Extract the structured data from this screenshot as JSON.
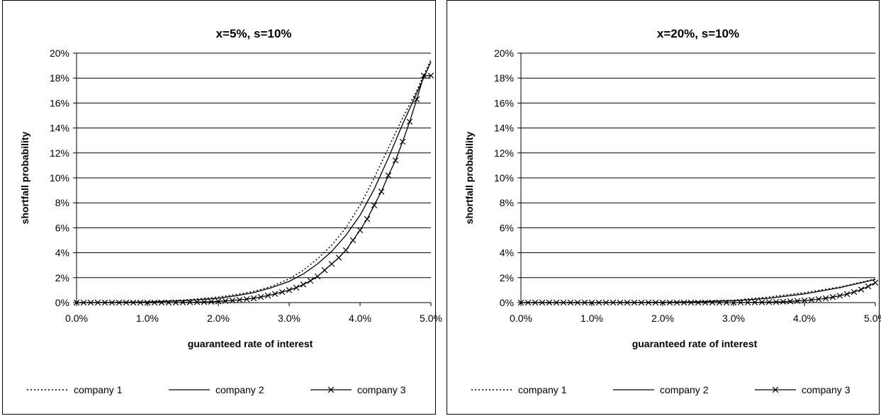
{
  "chart_data": [
    {
      "type": "line",
      "title": "x=5%, s=10%",
      "xlabel": "guaranteed rate of interest",
      "ylabel": "shortfall probability",
      "xlim": [
        0.0,
        5.0
      ],
      "ylim": [
        0,
        20
      ],
      "x_tick_labels": [
        "0.0%",
        "1.0%",
        "2.0%",
        "3.0%",
        "4.0%",
        "5.0%"
      ],
      "y_tick_labels": [
        "0%",
        "2%",
        "4%",
        "6%",
        "8%",
        "10%",
        "12%",
        "14%",
        "16%",
        "18%",
        "20%"
      ],
      "grid": "horizontal",
      "legend_position": "bottom",
      "series": [
        {
          "name": "company 1",
          "style": "dotted",
          "x": [
            0,
            0.5,
            1.0,
            1.5,
            2.0,
            2.25,
            2.5,
            2.75,
            3.0,
            3.2,
            3.4,
            3.6,
            3.8,
            4.0,
            4.2,
            4.4,
            4.6,
            4.8,
            5.0
          ],
          "y": [
            0,
            0.02,
            0.06,
            0.2,
            0.45,
            0.65,
            0.9,
            1.3,
            1.9,
            2.6,
            3.5,
            4.6,
            6.0,
            7.8,
            10.0,
            12.4,
            14.8,
            17.0,
            19.5
          ]
        },
        {
          "name": "company 2",
          "style": "solid",
          "x": [
            0,
            0.5,
            1.0,
            1.5,
            2.0,
            2.25,
            2.5,
            2.75,
            3.0,
            3.2,
            3.4,
            3.6,
            3.8,
            4.0,
            4.2,
            4.4,
            4.6,
            4.8,
            5.0
          ],
          "y": [
            0,
            0.02,
            0.05,
            0.15,
            0.35,
            0.55,
            0.8,
            1.2,
            1.7,
            2.3,
            3.1,
            4.1,
            5.4,
            7.0,
            9.1,
            11.6,
            14.3,
            16.8,
            19.3
          ]
        },
        {
          "name": "company 3",
          "style": "solid-x",
          "x": [
            0,
            0.1,
            0.2,
            0.3,
            0.4,
            0.5,
            0.6,
            0.7,
            0.8,
            0.9,
            1.0,
            1.1,
            1.2,
            1.3,
            1.4,
            1.5,
            1.6,
            1.7,
            1.8,
            1.9,
            2.0,
            2.1,
            2.2,
            2.3,
            2.4,
            2.5,
            2.6,
            2.7,
            2.8,
            2.9,
            3.0,
            3.1,
            3.2,
            3.3,
            3.4,
            3.5,
            3.6,
            3.7,
            3.8,
            3.9,
            4.0,
            4.1,
            4.2,
            4.3,
            4.4,
            4.5,
            4.6,
            4.7,
            4.8,
            4.9,
            5.0
          ],
          "y": [
            0,
            0,
            0,
            0,
            0,
            0,
            0,
            0,
            0,
            0,
            0,
            0,
            0,
            0,
            0,
            0.02,
            0.03,
            0.04,
            0.05,
            0.07,
            0.1,
            0.13,
            0.17,
            0.22,
            0.28,
            0.35,
            0.45,
            0.57,
            0.7,
            0.85,
            1.0,
            1.2,
            1.45,
            1.75,
            2.1,
            2.6,
            3.1,
            3.6,
            4.2,
            5.0,
            5.8,
            6.7,
            7.8,
            8.9,
            10.2,
            11.4,
            12.9,
            14.5,
            16.3,
            18.2,
            18.2
          ]
        }
      ]
    },
    {
      "type": "line",
      "title": "x=20%, s=10%",
      "xlabel": "guaranteed rate of interest",
      "ylabel": "shortfall probability",
      "xlim": [
        0.0,
        5.0
      ],
      "ylim": [
        0,
        20
      ],
      "x_tick_labels": [
        "0.0%",
        "1.0%",
        "2.0%",
        "3.0%",
        "4.0%",
        "5.0%"
      ],
      "y_tick_labels": [
        "0%",
        "2%",
        "4%",
        "6%",
        "8%",
        "10%",
        "12%",
        "14%",
        "16%",
        "18%",
        "20%"
      ],
      "grid": "horizontal",
      "legend_position": "bottom",
      "series": [
        {
          "name": "company 1",
          "style": "dotted",
          "x": [
            0,
            1.0,
            2.0,
            2.5,
            3.0,
            3.5,
            4.0,
            4.5,
            5.0
          ],
          "y": [
            0,
            0,
            0.02,
            0.08,
            0.2,
            0.45,
            0.8,
            1.25,
            1.9
          ]
        },
        {
          "name": "company 2",
          "style": "solid",
          "x": [
            0,
            1.0,
            2.0,
            2.5,
            3.0,
            3.5,
            4.0,
            4.5,
            5.0
          ],
          "y": [
            0,
            0,
            0.02,
            0.06,
            0.15,
            0.35,
            0.7,
            1.2,
            1.85
          ]
        },
        {
          "name": "company 3",
          "style": "solid-x",
          "x": [
            0,
            0.1,
            0.2,
            0.3,
            0.4,
            0.5,
            0.6,
            0.7,
            0.8,
            0.9,
            1.0,
            1.1,
            1.2,
            1.3,
            1.4,
            1.5,
            1.6,
            1.7,
            1.8,
            1.9,
            2.0,
            2.1,
            2.2,
            2.3,
            2.4,
            2.5,
            2.6,
            2.7,
            2.8,
            2.9,
            3.0,
            3.1,
            3.2,
            3.3,
            3.4,
            3.5,
            3.6,
            3.7,
            3.8,
            3.9,
            4.0,
            4.1,
            4.2,
            4.3,
            4.4,
            4.5,
            4.6,
            4.7,
            4.8,
            4.9,
            5.0
          ],
          "y": [
            0,
            0,
            0,
            0,
            0,
            0,
            0,
            0,
            0,
            0,
            0,
            0,
            0,
            0,
            0,
            0,
            0,
            0,
            0,
            0,
            0,
            0,
            0,
            0,
            0,
            0,
            0,
            0,
            0,
            0,
            0,
            0.01,
            0.01,
            0.02,
            0.03,
            0.04,
            0.05,
            0.07,
            0.1,
            0.13,
            0.17,
            0.22,
            0.28,
            0.35,
            0.44,
            0.55,
            0.68,
            0.85,
            1.05,
            1.3,
            1.6
          ]
        }
      ]
    }
  ]
}
